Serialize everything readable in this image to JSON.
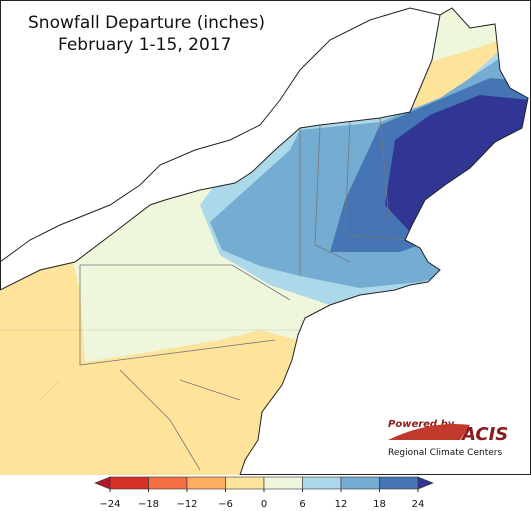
{
  "title": "Snowfall Departure (inches)",
  "subtitle": "February 1-15, 2017",
  "colorbar": {
    "ticks": [
      {
        "value": -24,
        "label": "−24"
      },
      {
        "value": -18,
        "label": "−18"
      },
      {
        "value": -12,
        "label": "−12"
      },
      {
        "value": -6,
        "label": "−6"
      },
      0,
      6,
      12,
      18,
      24
    ],
    "under_color": "#b2182b",
    "colors": [
      "#d73027",
      "#f46d43",
      "#fdae61",
      "#fee39b",
      "#eef6dc",
      "#abd9e9",
      "#74add1",
      "#4575b4"
    ],
    "over_color": "#313695"
  },
  "logo": {
    "powered": "Powered by",
    "name": "ACIS",
    "org": "Regional Climate Centers"
  }
}
